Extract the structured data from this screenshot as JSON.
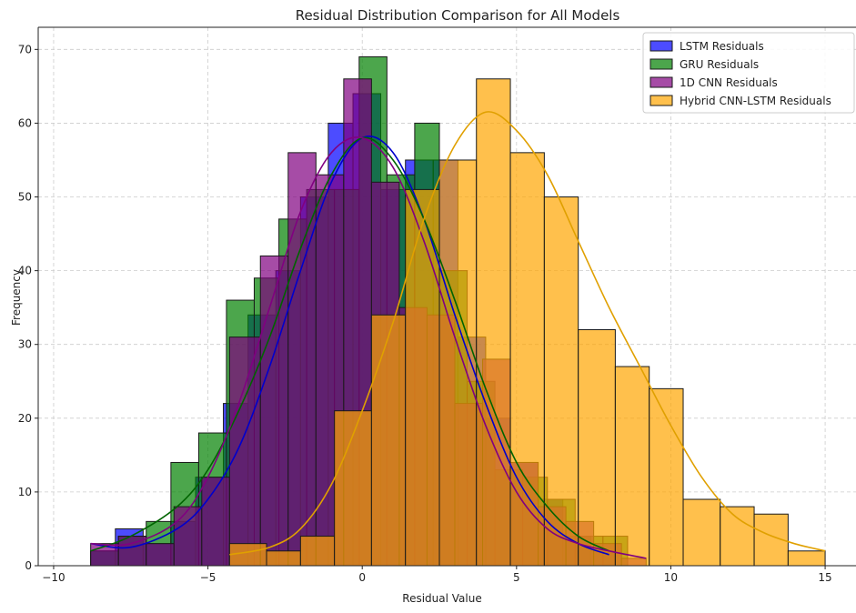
{
  "chart_data": {
    "type": "histogram",
    "title": "Residual Distribution Comparison for All Models",
    "xlabel": "Residual Value",
    "ylabel": "Frequency",
    "xlim": [
      -10.5,
      16
    ],
    "ylim": [
      0,
      73
    ],
    "xticks": [
      -10,
      -5,
      0,
      5,
      10,
      15
    ],
    "yticks": [
      0,
      10,
      20,
      30,
      40,
      50,
      60,
      70
    ],
    "grid": true,
    "legend_position": "top-right",
    "series": [
      {
        "name": "LSTM Residuals",
        "color": "#0000ff",
        "kde_color": "#0000cc",
        "bins": [
          [
            -8.8,
            -8.0,
            2
          ],
          [
            -8.0,
            -7.1,
            5
          ],
          [
            -7.1,
            -6.2,
            3
          ],
          [
            -6.2,
            -5.4,
            6
          ],
          [
            -5.4,
            -4.5,
            12
          ],
          [
            -4.5,
            -3.7,
            22
          ],
          [
            -3.7,
            -2.8,
            34
          ],
          [
            -2.8,
            -2.0,
            40
          ],
          [
            -2.0,
            -1.1,
            50
          ],
          [
            -1.1,
            -0.3,
            60
          ],
          [
            -0.3,
            0.6,
            64
          ],
          [
            0.6,
            1.4,
            51
          ],
          [
            1.4,
            2.3,
            55
          ],
          [
            2.3,
            3.1,
            55
          ],
          [
            3.1,
            4.0,
            31
          ],
          [
            4.0,
            4.8,
            20
          ],
          [
            4.8,
            5.7,
            14
          ],
          [
            5.7,
            6.5,
            9
          ],
          [
            6.5,
            7.4,
            4
          ],
          [
            7.4,
            8.2,
            2
          ]
        ],
        "kde": [
          [
            -8.8,
            3
          ],
          [
            -7.5,
            2.5
          ],
          [
            -6,
            5
          ],
          [
            -5,
            9
          ],
          [
            -4,
            16
          ],
          [
            -3,
            27
          ],
          [
            -2,
            40
          ],
          [
            -1,
            52
          ],
          [
            0,
            58
          ],
          [
            1,
            56
          ],
          [
            2,
            47
          ],
          [
            3,
            34
          ],
          [
            4,
            22
          ],
          [
            5,
            12
          ],
          [
            6,
            6
          ],
          [
            7,
            3
          ],
          [
            8,
            1.5
          ]
        ]
      },
      {
        "name": "GRU Residuals",
        "color": "#008000",
        "kde_color": "#006400",
        "bins": [
          [
            -8.8,
            -7.9,
            2
          ],
          [
            -7.9,
            -7.0,
            4
          ],
          [
            -7.0,
            -6.2,
            6
          ],
          [
            -6.2,
            -5.3,
            14
          ],
          [
            -5.3,
            -4.4,
            18
          ],
          [
            -4.4,
            -3.5,
            36
          ],
          [
            -3.5,
            -2.7,
            39
          ],
          [
            -2.7,
            -1.8,
            47
          ],
          [
            -1.8,
            -0.9,
            51
          ],
          [
            -0.9,
            -0.1,
            51
          ],
          [
            -0.1,
            0.8,
            69
          ],
          [
            0.8,
            1.7,
            53
          ],
          [
            1.7,
            2.5,
            60
          ],
          [
            2.5,
            3.4,
            40
          ],
          [
            3.4,
            4.3,
            25
          ],
          [
            4.3,
            5.2,
            13
          ],
          [
            5.2,
            6.0,
            12
          ],
          [
            6.0,
            6.9,
            9
          ],
          [
            6.9,
            7.8,
            4
          ],
          [
            7.8,
            8.6,
            4
          ]
        ],
        "kde": [
          [
            -8.8,
            2
          ],
          [
            -7.5,
            4
          ],
          [
            -6,
            8
          ],
          [
            -5,
            13
          ],
          [
            -4,
            21
          ],
          [
            -3,
            31
          ],
          [
            -2,
            43
          ],
          [
            -1,
            53
          ],
          [
            0,
            58
          ],
          [
            1,
            55
          ],
          [
            2,
            47
          ],
          [
            3,
            36
          ],
          [
            4,
            24
          ],
          [
            5,
            14
          ],
          [
            6,
            8
          ],
          [
            7,
            4
          ],
          [
            8,
            2
          ]
        ]
      },
      {
        "name": "1D CNN Residuals",
        "color": "#800080",
        "kde_color": "#800080",
        "bins": [
          [
            -8.8,
            -7.9,
            3
          ],
          [
            -7.9,
            -7.0,
            4
          ],
          [
            -7.0,
            -6.1,
            3
          ],
          [
            -6.1,
            -5.2,
            8
          ],
          [
            -5.2,
            -4.3,
            12
          ],
          [
            -4.3,
            -3.3,
            31
          ],
          [
            -3.3,
            -2.4,
            42
          ],
          [
            -2.4,
            -1.5,
            56
          ],
          [
            -1.5,
            -0.6,
            53
          ],
          [
            -0.6,
            0.3,
            66
          ],
          [
            0.3,
            1.2,
            52
          ],
          [
            1.2,
            2.1,
            35
          ],
          [
            2.1,
            3.0,
            34
          ],
          [
            3.0,
            3.9,
            22
          ],
          [
            3.9,
            4.8,
            28
          ],
          [
            4.8,
            5.7,
            14
          ],
          [
            5.7,
            6.6,
            8
          ],
          [
            6.6,
            7.5,
            6
          ],
          [
            7.5,
            8.4,
            3
          ],
          [
            8.4,
            9.2,
            1
          ]
        ],
        "kde": [
          [
            -8.8,
            3
          ],
          [
            -7.5,
            3
          ],
          [
            -6,
            6
          ],
          [
            -5,
            12
          ],
          [
            -4,
            22
          ],
          [
            -3,
            35
          ],
          [
            -2,
            48
          ],
          [
            -1,
            56
          ],
          [
            0,
            58
          ],
          [
            1,
            54
          ],
          [
            2,
            44
          ],
          [
            3,
            31
          ],
          [
            4,
            19
          ],
          [
            5,
            10
          ],
          [
            6,
            5
          ],
          [
            7,
            3
          ],
          [
            8,
            2
          ],
          [
            9.2,
            1
          ]
        ]
      },
      {
        "name": "Hybrid CNN-LSTM Residuals",
        "color": "#ffa500",
        "kde_color": "#e0a000",
        "bins": [
          [
            -4.3,
            -3.1,
            3
          ],
          [
            -3.1,
            -2.0,
            2
          ],
          [
            -2.0,
            -0.9,
            4
          ],
          [
            -0.9,
            0.3,
            21
          ],
          [
            0.3,
            1.4,
            34
          ],
          [
            1.4,
            2.5,
            51
          ],
          [
            2.5,
            3.7,
            55
          ],
          [
            3.7,
            4.8,
            66
          ],
          [
            4.8,
            5.9,
            56
          ],
          [
            5.9,
            7.0,
            50
          ],
          [
            7.0,
            8.2,
            32
          ],
          [
            8.2,
            9.3,
            27
          ],
          [
            9.3,
            10.4,
            24
          ],
          [
            10.4,
            11.6,
            9
          ],
          [
            11.6,
            12.7,
            8
          ],
          [
            12.7,
            13.8,
            7
          ],
          [
            13.8,
            15.0,
            2
          ]
        ],
        "kde": [
          [
            -4.3,
            1.5
          ],
          [
            -3,
            2.5
          ],
          [
            -2,
            5
          ],
          [
            -1,
            11
          ],
          [
            0,
            21
          ],
          [
            1,
            33
          ],
          [
            2,
            47
          ],
          [
            3,
            57
          ],
          [
            4,
            61.5
          ],
          [
            5,
            59
          ],
          [
            6,
            53
          ],
          [
            7,
            44
          ],
          [
            8,
            35
          ],
          [
            9,
            27
          ],
          [
            10,
            19
          ],
          [
            11,
            12
          ],
          [
            12,
            7
          ],
          [
            13,
            4.5
          ],
          [
            14,
            3
          ],
          [
            15,
            2
          ]
        ]
      }
    ]
  }
}
